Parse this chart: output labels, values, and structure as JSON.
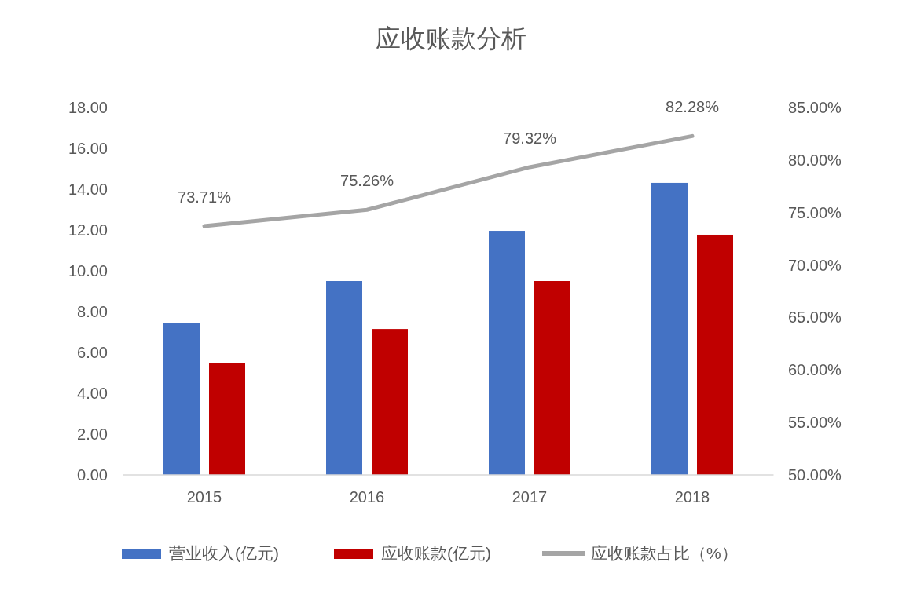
{
  "chart_data": {
    "type": "bar",
    "title": "应收账款分析",
    "categories": [
      "2015",
      "2016",
      "2017",
      "2018"
    ],
    "series": [
      {
        "name": "营业收入(亿元)",
        "color": "#4472c4",
        "values": [
          7.46,
          9.5,
          11.96,
          14.31
        ]
      },
      {
        "name": "应收账款(亿元)",
        "color": "#c00000",
        "values": [
          5.5,
          7.15,
          9.5,
          11.77
        ]
      },
      {
        "name": "应收账款占比（%）",
        "type": "line",
        "axis": "y2",
        "color": "#a5a5a5",
        "values": [
          73.71,
          75.26,
          79.32,
          82.28
        ],
        "value_labels": [
          "73.71%",
          "75.26%",
          "79.32%",
          "82.28%"
        ]
      }
    ],
    "ylim": [
      0,
      18
    ],
    "yticks": [
      {
        "value": 0,
        "label": "0.00"
      },
      {
        "value": 2,
        "label": "2.00"
      },
      {
        "value": 4,
        "label": "4.00"
      },
      {
        "value": 6,
        "label": "6.00"
      },
      {
        "value": 8,
        "label": "8.00"
      },
      {
        "value": 10,
        "label": "10.00"
      },
      {
        "value": 12,
        "label": "12.00"
      },
      {
        "value": 14,
        "label": "14.00"
      },
      {
        "value": 16,
        "label": "16.00"
      },
      {
        "value": 18,
        "label": "18.00"
      }
    ],
    "y2lim": [
      50,
      85
    ],
    "y2ticks": [
      {
        "value": 50,
        "label": "50.00%"
      },
      {
        "value": 55,
        "label": "55.00%"
      },
      {
        "value": 60,
        "label": "60.00%"
      },
      {
        "value": 65,
        "label": "65.00%"
      },
      {
        "value": 70,
        "label": "70.00%"
      },
      {
        "value": 75,
        "label": "75.00%"
      },
      {
        "value": 80,
        "label": "80.00%"
      },
      {
        "value": 85,
        "label": "85.00%"
      }
    ],
    "grid": false,
    "legend": "bottom",
    "marker": "none"
  }
}
